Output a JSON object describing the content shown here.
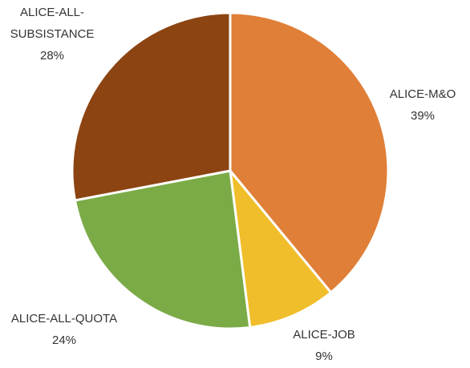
{
  "chart_data": {
    "type": "pie",
    "categories": [
      "ALICE-M&O",
      "ALICE-JOB",
      "ALICE-ALL-QUOTA",
      "ALICE-ALL-SUBSISTANCE"
    ],
    "values": [
      39,
      9,
      24,
      28
    ],
    "value_labels": [
      "39%",
      "9%",
      "24%",
      "28%"
    ],
    "colors": [
      "#e07f38",
      "#f0be2a",
      "#7bab47",
      "#8c4412"
    ]
  }
}
